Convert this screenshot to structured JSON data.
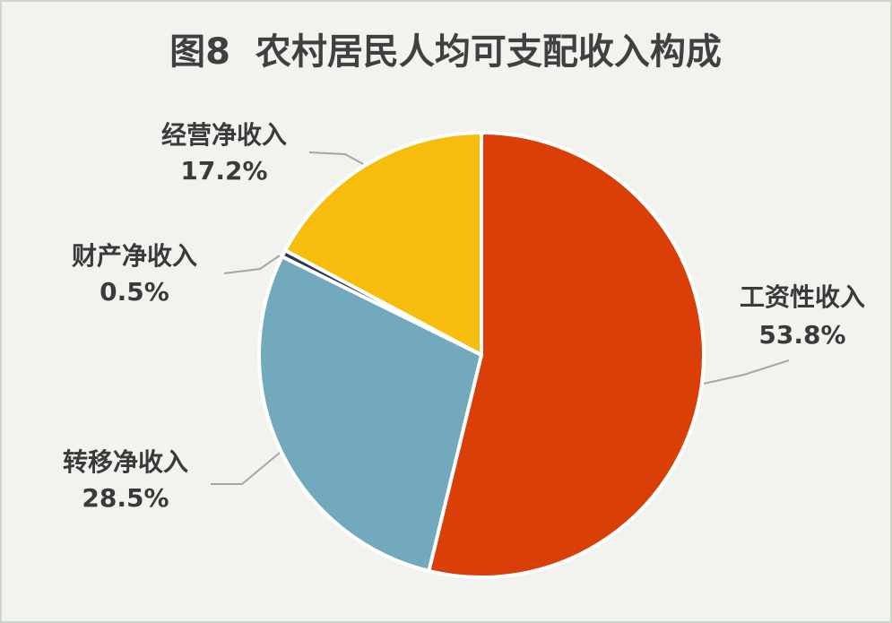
{
  "chart_data": {
    "type": "pie",
    "title": "图8  农村居民人均可支配收入构成",
    "categories": [
      "工资性收入",
      "转移净收入",
      "财产净收入",
      "经营净收入"
    ],
    "values": [
      53.8,
      28.5,
      0.5,
      17.2
    ],
    "value_labels": [
      "53.8%",
      "28.5%",
      "0.5%",
      "17.2%"
    ],
    "colors": [
      "#d93f06",
      "#72a9bd",
      "#2d3a52",
      "#f7bd0c"
    ]
  }
}
